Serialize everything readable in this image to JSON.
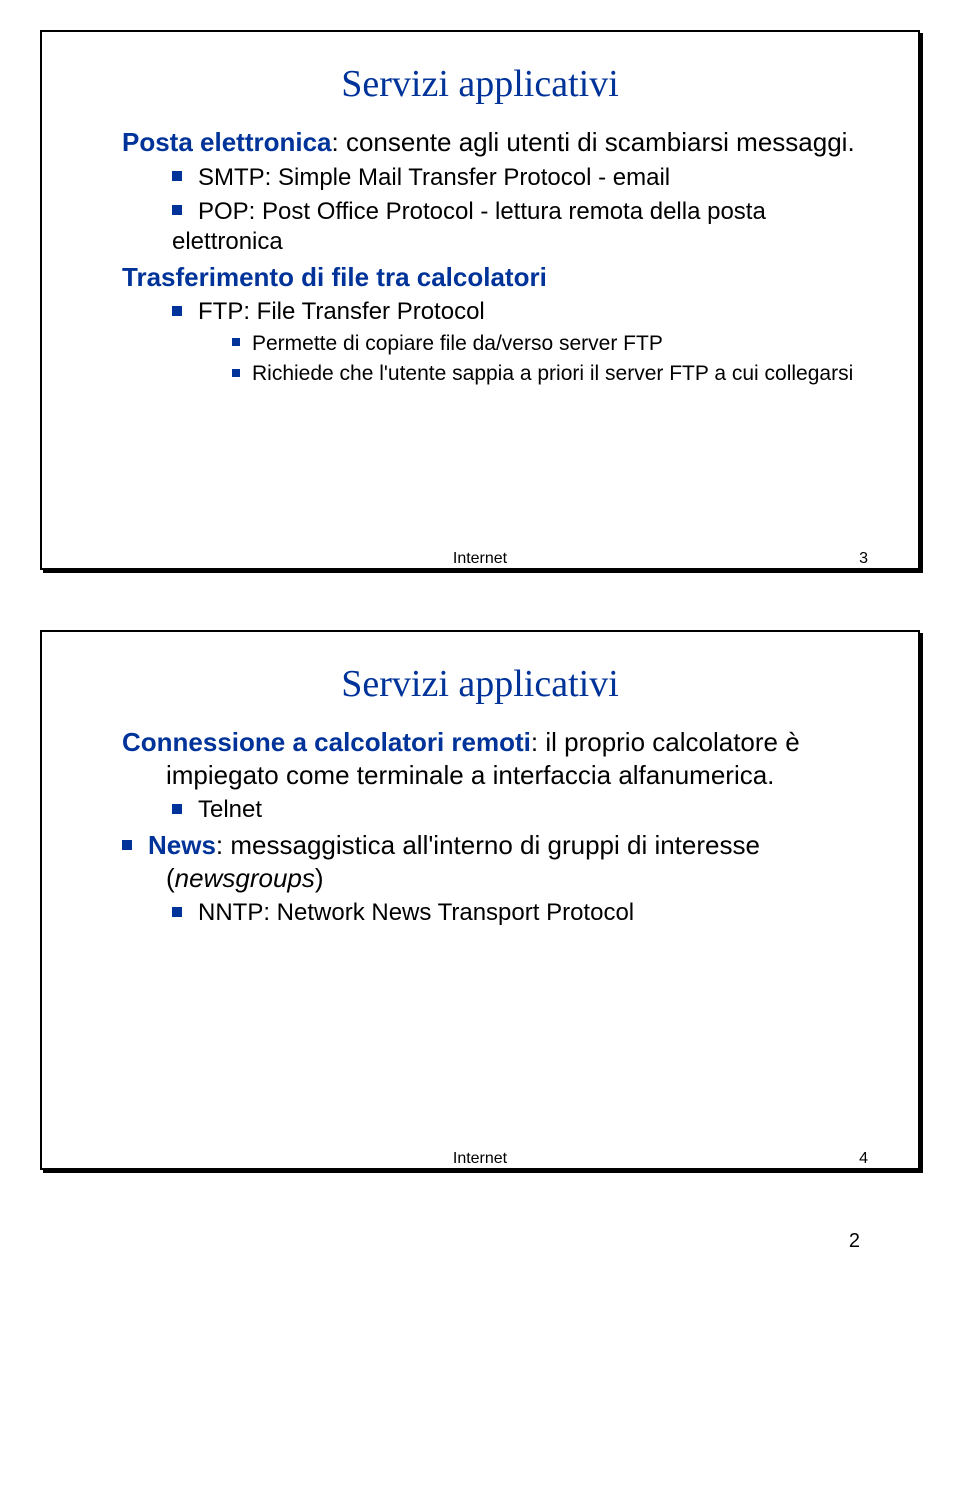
{
  "slide1": {
    "title": "Servizi applicativi",
    "topic1": "Posta elettronica",
    "topic1_text": ": consente agli utenti di scambiarsi messaggi.",
    "b1": "SMTP: Simple Mail Transfer Protocol - email",
    "b2": "POP: Post Office Protocol - lettura remota della posta elettronica",
    "topic2": "Trasferimento di file tra calcolatori",
    "b3": "FTP: File Transfer Protocol",
    "s1": "Permette di copiare file da/verso server FTP",
    "s2": "Richiede che l'utente sappia a priori il server FTP a cui collegarsi",
    "footer_label": "Internet",
    "footer_num": "3"
  },
  "slide2": {
    "title": "Servizi applicativi",
    "topic1": "Connessione a calcolatori remoti",
    "topic1_text": ": il proprio calcolatore è impiegato come terminale a interfaccia  alfanumerica.",
    "b1": "Telnet",
    "topic2": "News",
    "topic2_text": ": messaggistica all'interno di gruppi di interesse (",
    "topic2_italic": "newsgroups",
    "topic2_text2": ")",
    "b2": "NNTP: Network News Transport Protocol",
    "footer_label": "Internet",
    "footer_num": "4"
  },
  "page_number": "2"
}
